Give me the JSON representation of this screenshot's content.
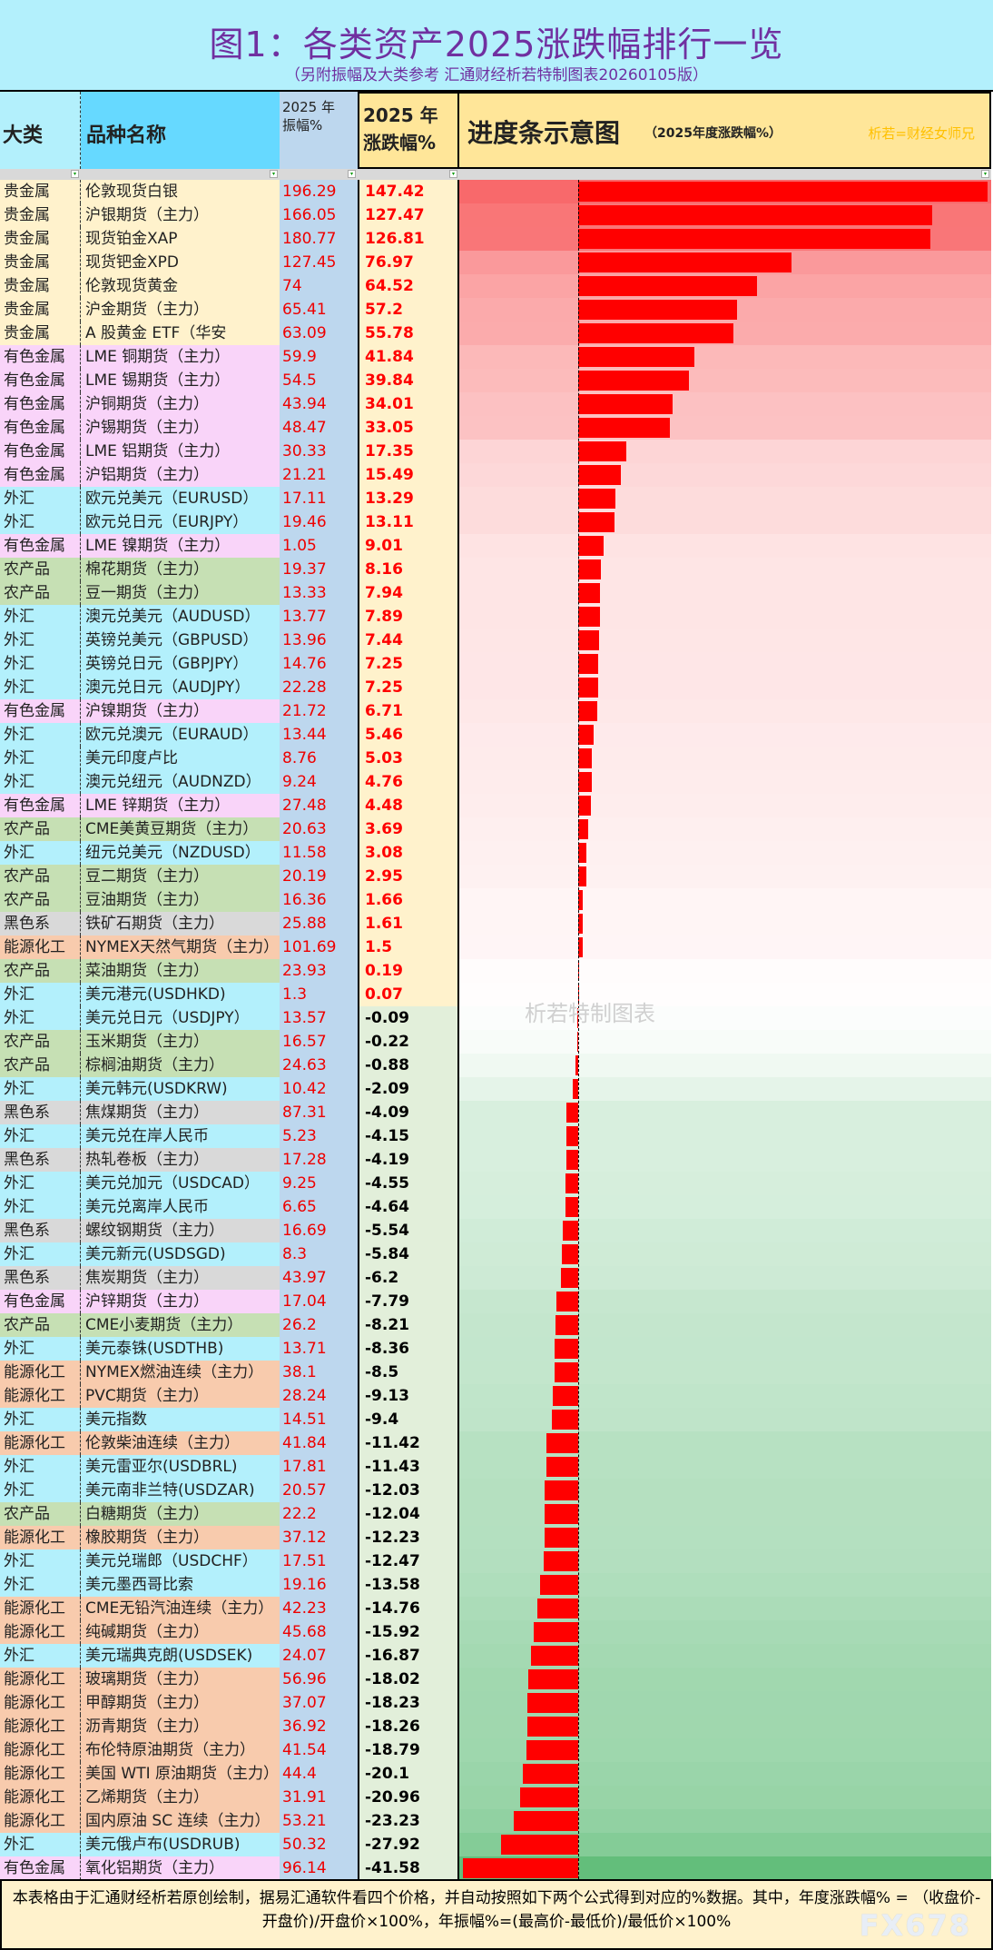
{
  "title": "图1：各类资产2025涨跌幅排行一览",
  "subtitle": "（另附振幅及大类参考 汇通财经析若特制图表20260105版）",
  "header": {
    "category": "大类",
    "name": "品种名称",
    "amplitude_l1": "2025 年",
    "amplitude_l2": "振幅%",
    "change_l1": "2025 年",
    "change_l2": "涨跌幅%",
    "chart_title": "进度条示意图",
    "chart_sub": "（2025年度涨跌幅%）",
    "author": "析若=财经女师兄"
  },
  "watermark": "析若特制图表",
  "footer": {
    "text": "本表格由于汇通财经析若原创绘制，据易汇通软件看四个价格，并自动按照如下两个公式得到对应的%数据。其中，年度涨跌幅% = （收盘价-开盘价)/开盘价×100%，年振幅%=(最高价-最低价)/最低价×100%",
    "logo": "FX678"
  },
  "colors": {
    "贵金属": "#fff2cc",
    "有色金属": "#f9d4f9",
    "外汇": "#b3f0fc",
    "农产品": "#c6e0b4",
    "黑色系": "#d9d9d9",
    "能源化工": "#f8cbad",
    "bar": "#ff0000",
    "positive_scale": "#f8696b",
    "negative_scale": "#63be7b"
  },
  "chart_data": {
    "type": "bar",
    "orientation": "horizontal",
    "columns": [
      "大类",
      "品种名称",
      "2025 年振幅%",
      "2025 年涨跌幅%"
    ],
    "rows": [
      [
        "贵金属",
        "伦敦现货白银",
        196.29,
        147.42
      ],
      [
        "贵金属",
        "沪银期货（主力）",
        166.05,
        127.47
      ],
      [
        "贵金属",
        "现货铂金XAP",
        180.77,
        126.81
      ],
      [
        "贵金属",
        "现货钯金XPD",
        127.45,
        76.97
      ],
      [
        "贵金属",
        "伦敦现货黄金",
        74,
        64.52
      ],
      [
        "贵金属",
        "沪金期货（主力）",
        65.41,
        57.2
      ],
      [
        "贵金属",
        "A 股黄金 ETF（华安",
        63.09,
        55.78
      ],
      [
        "有色金属",
        "LME 铜期货（主力）",
        59.9,
        41.84
      ],
      [
        "有色金属",
        "LME 锡期货（主力）",
        54.5,
        39.84
      ],
      [
        "有色金属",
        "沪铜期货（主力）",
        43.94,
        34.01
      ],
      [
        "有色金属",
        "沪锡期货（主力）",
        48.47,
        33.05
      ],
      [
        "有色金属",
        "LME 铝期货（主力）",
        30.33,
        17.35
      ],
      [
        "有色金属",
        "沪铝期货（主力）",
        21.21,
        15.49
      ],
      [
        "外汇",
        "欧元兑美元（EURUSD）",
        17.11,
        13.29
      ],
      [
        "外汇",
        "欧元兑日元（EURJPY）",
        19.46,
        13.11
      ],
      [
        "有色金属",
        "LME 镍期货（主力）",
        1.05,
        9.01
      ],
      [
        "农产品",
        "棉花期货（主力）",
        19.37,
        8.16
      ],
      [
        "农产品",
        "豆一期货（主力）",
        13.33,
        7.94
      ],
      [
        "外汇",
        "澳元兑美元（AUDUSD）",
        13.77,
        7.89
      ],
      [
        "外汇",
        "英镑兑美元（GBPUSD）",
        13.96,
        7.44
      ],
      [
        "外汇",
        "英镑兑日元（GBPJPY）",
        14.76,
        7.25
      ],
      [
        "外汇",
        "澳元兑日元（AUDJPY）",
        22.28,
        7.25
      ],
      [
        "有色金属",
        "沪镍期货（主力）",
        21.72,
        6.71
      ],
      [
        "外汇",
        "欧元兑澳元（EURAUD）",
        13.44,
        5.46
      ],
      [
        "外汇",
        "美元印度卢比",
        8.76,
        5.03
      ],
      [
        "外汇",
        "澳元兑纽元（AUDNZD）",
        9.24,
        4.76
      ],
      [
        "有色金属",
        "LME 锌期货（主力）",
        27.48,
        4.48
      ],
      [
        "农产品",
        "CME美黄豆期货（主力）",
        20.63,
        3.69
      ],
      [
        "外汇",
        "纽元兑美元（NZDUSD）",
        11.58,
        3.08
      ],
      [
        "农产品",
        "豆二期货（主力）",
        20.19,
        2.95
      ],
      [
        "农产品",
        "豆油期货（主力）",
        16.36,
        1.66
      ],
      [
        "黑色系",
        "铁矿石期货（主力）",
        25.88,
        1.61
      ],
      [
        "能源化工",
        "NYMEX天然气期货（主力）",
        101.69,
        1.5
      ],
      [
        "农产品",
        "菜油期货（主力）",
        23.93,
        0.19
      ],
      [
        "外汇",
        "美元港元(USDHKD)",
        1.3,
        0.07
      ],
      [
        "外汇",
        "美元兑日元（USDJPY）",
        13.57,
        -0.09
      ],
      [
        "农产品",
        "玉米期货（主力）",
        16.57,
        -0.22
      ],
      [
        "农产品",
        "棕榈油期货（主力）",
        24.63,
        -0.88
      ],
      [
        "外汇",
        "美元韩元(USDKRW)",
        10.42,
        -2.09
      ],
      [
        "黑色系",
        "焦煤期货（主力）",
        87.31,
        -4.09
      ],
      [
        "外汇",
        "美元兑在岸人民币",
        5.23,
        -4.15
      ],
      [
        "黑色系",
        "热轧卷板（主力）",
        17.28,
        -4.19
      ],
      [
        "外汇",
        "美元兑加元（USDCAD）",
        9.25,
        -4.55
      ],
      [
        "外汇",
        "美元兑离岸人民币",
        6.65,
        -4.64
      ],
      [
        "黑色系",
        "螺纹钢期货（主力）",
        16.69,
        -5.54
      ],
      [
        "外汇",
        "美元新元(USDSGD)",
        8.3,
        -5.84
      ],
      [
        "黑色系",
        "焦炭期货（主力）",
        43.97,
        -6.2
      ],
      [
        "有色金属",
        "沪锌期货（主力）",
        17.04,
        -7.79
      ],
      [
        "农产品",
        "CME小麦期货（主力）",
        26.2,
        -8.21
      ],
      [
        "外汇",
        "美元泰铢(USDTHB)",
        13.71,
        -8.36
      ],
      [
        "能源化工",
        "NYMEX燃油连续（主力）",
        38.1,
        -8.5
      ],
      [
        "能源化工",
        "PVC期货（主力）",
        28.24,
        -9.13
      ],
      [
        "外汇",
        "美元指数",
        14.51,
        -9.4
      ],
      [
        "能源化工",
        "伦敦柴油连续（主力）",
        41.84,
        -11.42
      ],
      [
        "外汇",
        "美元雷亚尔(USDBRL)",
        17.81,
        -11.43
      ],
      [
        "外汇",
        "美元南非兰特(USDZAR)",
        20.57,
        -12.03
      ],
      [
        "农产品",
        "白糖期货（主力）",
        22.2,
        -12.04
      ],
      [
        "能源化工",
        "橡胶期货（主力）",
        37.12,
        -12.23
      ],
      [
        "外汇",
        "美元兑瑞郎（USDCHF）",
        17.51,
        -12.47
      ],
      [
        "外汇",
        "美元墨西哥比索",
        19.16,
        -13.58
      ],
      [
        "能源化工",
        "CME无铅汽油连续（主力）",
        42.23,
        -14.76
      ],
      [
        "能源化工",
        "纯碱期货（主力）",
        45.68,
        -15.92
      ],
      [
        "外汇",
        "美元瑞典克朗(USDSEK)",
        24.07,
        -16.87
      ],
      [
        "能源化工",
        "玻璃期货（主力）",
        56.96,
        -18.02
      ],
      [
        "能源化工",
        "甲醇期货（主力）",
        37.07,
        -18.23
      ],
      [
        "能源化工",
        "沥青期货（主力）",
        36.92,
        -18.26
      ],
      [
        "能源化工",
        "布伦特原油期货（主力）",
        41.54,
        -18.79
      ],
      [
        "能源化工",
        "美国 WTI 原油期货（主力）",
        44.4,
        -20.1
      ],
      [
        "能源化工",
        "乙烯期货（主力）",
        31.91,
        -20.96
      ],
      [
        "能源化工",
        "国内原油 SC 连续（主力）",
        53.21,
        -23.23
      ],
      [
        "外汇",
        "美元俄卢布(USDRUB)",
        50.32,
        -27.92
      ],
      [
        "有色金属",
        "氧化铝期货（主力）",
        96.14,
        -41.58
      ]
    ],
    "xlim": [
      -41.58,
      147.42
    ]
  }
}
